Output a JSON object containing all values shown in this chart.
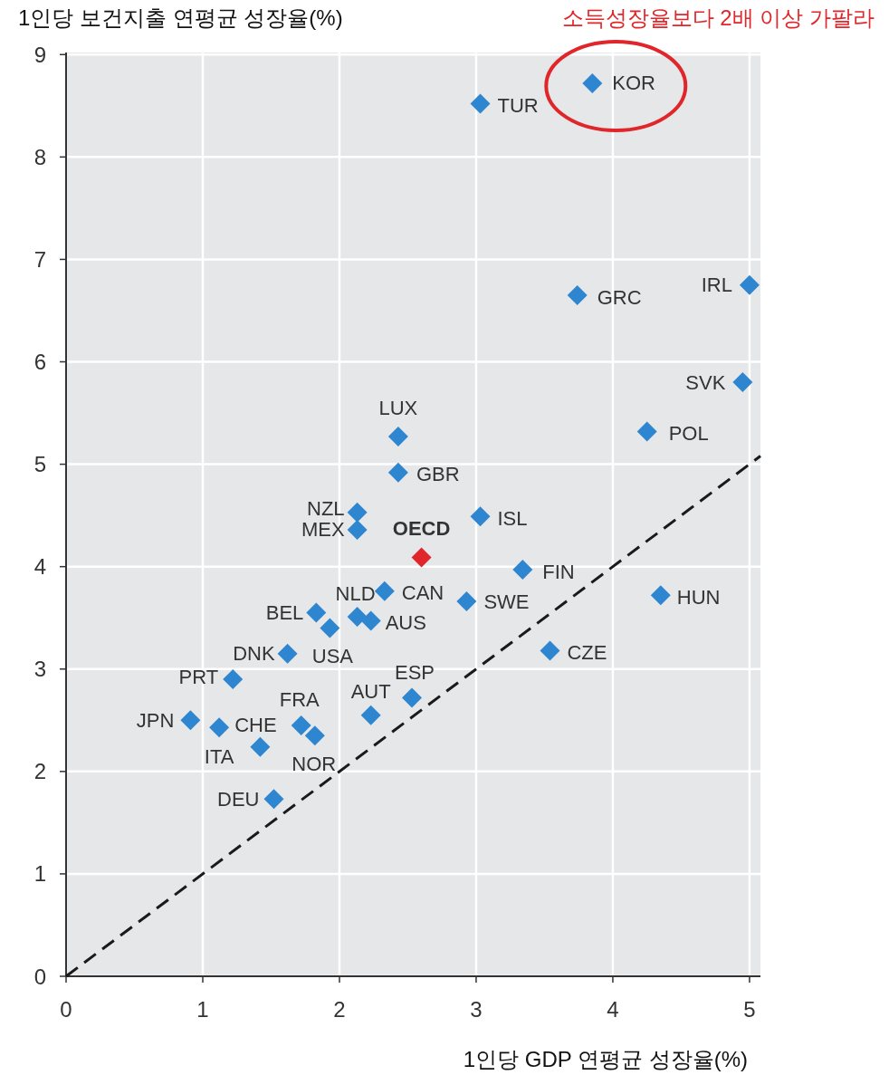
{
  "chart_data": {
    "type": "scatter",
    "xlabel": "1인당 GDP 연평균 성장율(%)",
    "ylabel": "1인당 보건지출 연평균 성장율(%)",
    "xlim": [
      0,
      5.08
    ],
    "ylim": [
      0,
      9.02
    ],
    "xticks": [
      0,
      1,
      2,
      3,
      4,
      5
    ],
    "yticks": [
      0,
      1,
      2,
      3,
      4,
      5,
      6,
      7,
      8,
      9
    ],
    "grid": true,
    "marker": "diamond",
    "series": [
      {
        "x": [
          3.85,
          3.03,
          3.74,
          5.0,
          4.95,
          4.25,
          2.43,
          2.43,
          2.13,
          2.13,
          3.03,
          2.6,
          3.34,
          4.35,
          1.83,
          1.93,
          2.13,
          2.23,
          2.33,
          2.93,
          3.54,
          1.62,
          1.22,
          2.53,
          2.23,
          1.72,
          1.82,
          0.91,
          1.42,
          1.12,
          1.52
        ],
        "values": [
          8.72,
          8.52,
          6.65,
          6.75,
          5.8,
          5.32,
          5.27,
          4.92,
          4.53,
          4.36,
          4.49,
          4.09,
          3.97,
          3.72,
          3.55,
          3.4,
          3.51,
          3.47,
          3.76,
          3.66,
          3.18,
          3.15,
          2.9,
          2.72,
          2.55,
          2.45,
          2.35,
          2.5,
          2.24,
          2.43,
          1.73
        ],
        "colors": [
          "#2f86d0",
          "#2f86d0",
          "#2f86d0",
          "#2f86d0",
          "#2f86d0",
          "#2f86d0",
          "#2f86d0",
          "#2f86d0",
          "#2f86d0",
          "#2f86d0",
          "#2f86d0",
          "#e0262a",
          "#2f86d0",
          "#2f86d0",
          "#2f86d0",
          "#2f86d0",
          "#2f86d0",
          "#2f86d0",
          "#2f86d0",
          "#2f86d0",
          "#2f86d0",
          "#2f86d0",
          "#2f86d0",
          "#2f86d0",
          "#2f86d0",
          "#2f86d0",
          "#2f86d0",
          "#2f86d0",
          "#2f86d0",
          "#2f86d0",
          "#2f86d0"
        ]
      },
      {
        "type": "line",
        "x": [
          0,
          5.08
        ],
        "values": [
          0,
          5.08
        ],
        "color": "#1a1a1a",
        "line_style": "dashed",
        "marker": "none"
      }
    ],
    "annotations": [
      "소득성장율보다 2배 이상 가팔라",
      {
        "text": "KOR",
        "x": 3.85,
        "y": 8.72
      },
      {
        "text": "TUR",
        "x": 3.03,
        "y": 8.52
      },
      {
        "text": "GRC",
        "x": 3.74,
        "y": 6.65
      },
      {
        "text": "IRL",
        "x": 5.0,
        "y": 6.75
      },
      {
        "text": "SVK",
        "x": 4.95,
        "y": 5.8
      },
      {
        "text": "POL",
        "x": 4.25,
        "y": 5.32
      },
      {
        "text": "LUX",
        "x": 2.43,
        "y": 5.27
      },
      {
        "text": "GBR",
        "x": 2.43,
        "y": 4.92
      },
      {
        "text": "NZL",
        "x": 2.13,
        "y": 4.53
      },
      {
        "text": "MEX",
        "x": 2.13,
        "y": 4.36
      },
      {
        "text": "ISL",
        "x": 3.03,
        "y": 4.49
      },
      {
        "text": "OECD",
        "x": 2.6,
        "y": 4.09
      },
      {
        "text": "FIN",
        "x": 3.34,
        "y": 3.97
      },
      {
        "text": "HUN",
        "x": 4.35,
        "y": 3.72
      },
      {
        "text": "BEL",
        "x": 1.83,
        "y": 3.55
      },
      {
        "text": "USA",
        "x": 1.93,
        "y": 3.4
      },
      {
        "text": "NLD",
        "x": 2.13,
        "y": 3.51
      },
      {
        "text": "AUS",
        "x": 2.23,
        "y": 3.47
      },
      {
        "text": "CAN",
        "x": 2.33,
        "y": 3.76
      },
      {
        "text": "SWE",
        "x": 2.93,
        "y": 3.66
      },
      {
        "text": "CZE",
        "x": 3.54,
        "y": 3.18
      },
      {
        "text": "DNK",
        "x": 1.62,
        "y": 3.15
      },
      {
        "text": "PRT",
        "x": 1.22,
        "y": 2.9
      },
      {
        "text": "ESP",
        "x": 2.53,
        "y": 2.72
      },
      {
        "text": "AUT",
        "x": 2.23,
        "y": 2.55
      },
      {
        "text": "FRA",
        "x": 1.72,
        "y": 2.45
      },
      {
        "text": "NOR",
        "x": 1.82,
        "y": 2.35
      },
      {
        "text": "JPN",
        "x": 0.91,
        "y": 2.5
      },
      {
        "text": "CHE",
        "x": 1.42,
        "y": 2.24
      },
      {
        "text": "ITA",
        "x": 1.12,
        "y": 2.43
      },
      {
        "text": "DEU",
        "x": 1.52,
        "y": 1.73
      }
    ]
  }
}
